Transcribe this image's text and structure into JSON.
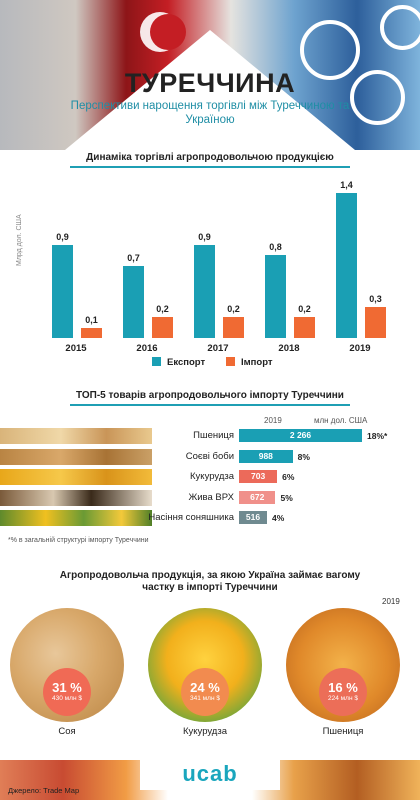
{
  "header": {
    "title": "ТУРЕЧЧИНА",
    "subtitle": "Перспективи нарощення торгівлі між Туреччиною та Україною"
  },
  "colors": {
    "export": "#1a9fb4",
    "import": "#f06a33",
    "hbars": [
      "#1a9fb4",
      "#1a9fb4",
      "#ec6a5a",
      "#f0908a",
      "#6f8a90"
    ],
    "bubbles": [
      "#f06a55",
      "#f28b4f",
      "#ec6e58"
    ]
  },
  "chart_data": [
    {
      "type": "bar",
      "title": "Динаміка торгівлі агропродовольчою продукцією",
      "ylabel": "Млрд дол. США",
      "categories": [
        "2015",
        "2016",
        "2017",
        "2018",
        "2019"
      ],
      "series": [
        {
          "name": "Експорт",
          "values": [
            0.9,
            0.7,
            0.9,
            0.8,
            1.4
          ],
          "labels": [
            "0,9",
            "0,7",
            "0,9",
            "0,8",
            "1,4"
          ]
        },
        {
          "name": "Імпорт",
          "values": [
            0.1,
            0.2,
            0.2,
            0.2,
            0.3
          ],
          "labels": [
            "0,1",
            "0,2",
            "0,2",
            "0,2",
            "0,3"
          ]
        }
      ],
      "ylim": [
        0,
        1.4
      ],
      "grid": false,
      "legend": "bottom"
    },
    {
      "type": "bar",
      "orientation": "horizontal",
      "title": "ТОП-5 товарів агропродовольчого імпорту Туреччини",
      "year_label": "2019",
      "unit_label": "млн дол. США",
      "categories": [
        "Пшениця",
        "Соєві боби",
        "Кукурудза",
        "Жива ВРХ",
        "Насіння соняшника"
      ],
      "values": [
        2266,
        988,
        703,
        672,
        516
      ],
      "value_labels": [
        "2 266",
        "988",
        "703",
        "672",
        "516"
      ],
      "shares": [
        "18%*",
        "8%",
        "6%",
        "5%",
        "4%"
      ],
      "footnote": "*% в загальній структурі імпорту Туреччини"
    },
    {
      "type": "pie",
      "title": "Агропродовольча продукція, за якою Україна займає вагому частку в імпорті Туреччини",
      "year_label": "2019",
      "items": [
        {
          "name": "Соя",
          "share": 31,
          "share_label": "31 %",
          "value_label": "430 млн $"
        },
        {
          "name": "Кукурудза",
          "share": 24,
          "share_label": "24 %",
          "value_label": "341 млн $"
        },
        {
          "name": "Пшениця",
          "share": 16,
          "share_label": "16 %",
          "value_label": "224 млн $"
        }
      ]
    }
  ],
  "footer": {
    "logo": "ucab",
    "source": "Джерело: Trade Map"
  }
}
